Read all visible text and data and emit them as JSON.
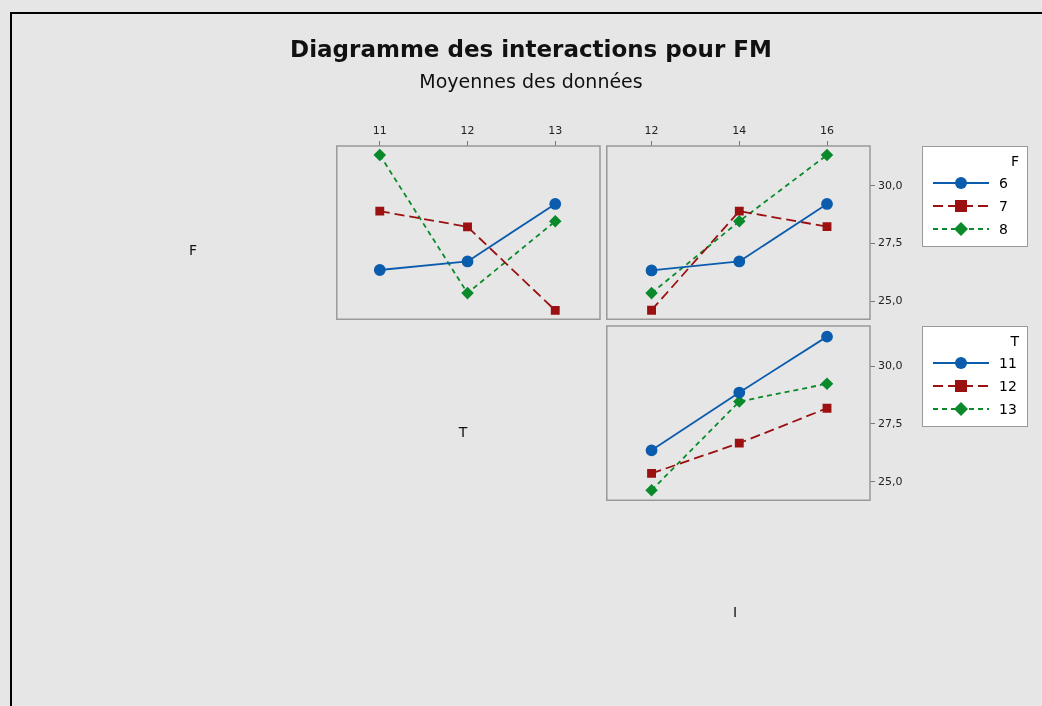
{
  "chart_data": [
    {
      "type": "line",
      "title": "Diagramme des interactions pour FM",
      "subtitle": "Moyennes des données",
      "ylabel": "F",
      "xlabel": "T",
      "x": [
        11,
        12,
        13
      ],
      "xlim": [
        10.51,
        13.51
      ],
      "xticks": [
        11,
        12,
        13
      ],
      "ylim": [
        24.22,
        31.72
      ],
      "tick_labels": "x",
      "legend": false,
      "grid": false,
      "series": [
        {
          "color": "#0b5cad",
          "marker": "circle",
          "line_style": "solid",
          "values": [
            26.35,
            26.72,
            29.21
          ]
        },
        {
          "color": "#9b1010",
          "marker": "square",
          "line_style": "dashed",
          "values": [
            28.9,
            28.22,
            24.6
          ]
        },
        {
          "color": "#0a8a2a",
          "marker": "diamond",
          "line_style": "dotted",
          "values": [
            31.33,
            25.35,
            28.46
          ]
        }
      ]
    },
    {
      "type": "line",
      "legend_title": "F",
      "x": [
        12,
        14,
        16
      ],
      "xlim": [
        10.98,
        16.98
      ],
      "xticks": [
        12,
        14,
        16
      ],
      "ylim": [
        24.22,
        31.72
      ],
      "yticks": [
        {
          "value": 25,
          "label": "25,0"
        },
        {
          "value": 27.5,
          "label": "27,5"
        },
        {
          "value": 30,
          "label": "30,0"
        }
      ],
      "legend": "right",
      "grid": false,
      "series": [
        {
          "name": "6",
          "color": "#0b5cad",
          "marker": "circle",
          "line_style": "solid",
          "values": [
            26.33,
            26.72,
            29.21
          ]
        },
        {
          "name": "7",
          "color": "#9b1010",
          "marker": "square",
          "line_style": "dashed",
          "values": [
            24.61,
            28.9,
            28.23
          ]
        },
        {
          "name": "8",
          "color": "#0a8a2a",
          "marker": "diamond",
          "line_style": "dotted",
          "values": [
            25.35,
            28.46,
            31.33
          ]
        }
      ]
    },
    {
      "type": "line",
      "legend_title": "T",
      "xlabel": "I",
      "x": [
        12,
        14,
        16
      ],
      "xlim": [
        10.98,
        16.98
      ],
      "ylim": [
        24.2,
        31.74
      ],
      "yticks": [
        {
          "value": 25,
          "label": "25,0"
        },
        {
          "value": 27.5,
          "label": "27,5"
        },
        {
          "value": 30,
          "label": "30,0"
        }
      ],
      "tick_labels": "y",
      "legend": "right",
      "grid": false,
      "series": [
        {
          "name": "11",
          "color": "#0b5cad",
          "marker": "circle",
          "line_style": "solid",
          "values": [
            26.36,
            28.86,
            31.28
          ]
        },
        {
          "name": "12",
          "color": "#9b1010",
          "marker": "square",
          "line_style": "dashed",
          "values": [
            25.36,
            26.67,
            28.18
          ]
        },
        {
          "name": "13",
          "color": "#0a8a2a",
          "marker": "diamond",
          "line_style": "dotted",
          "values": [
            24.63,
            28.47,
            29.24
          ]
        }
      ]
    }
  ]
}
